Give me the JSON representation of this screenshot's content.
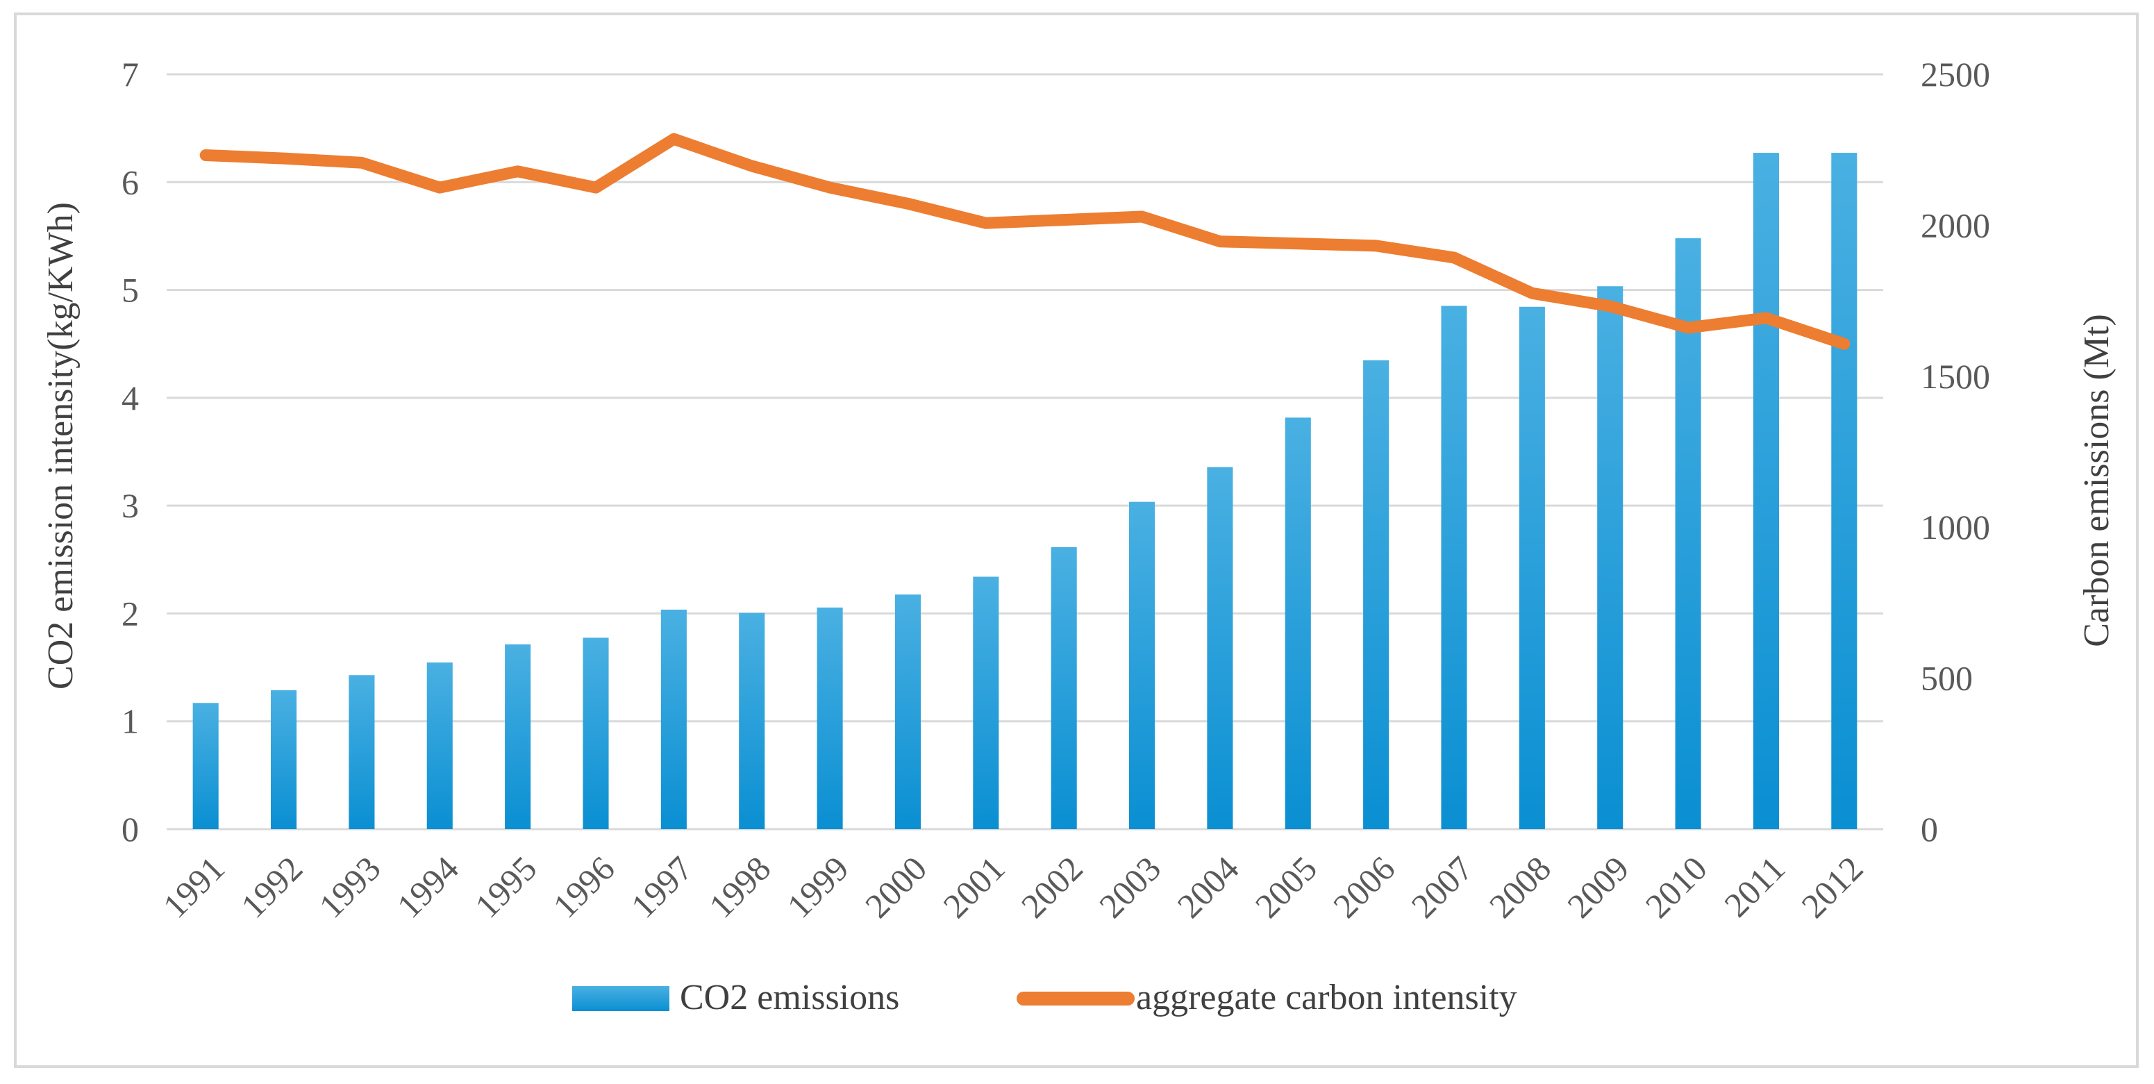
{
  "chart_data": {
    "type": "bar+line",
    "title": "",
    "categories": [
      "1991",
      "1992",
      "1993",
      "1994",
      "1995",
      "1996",
      "1997",
      "1998",
      "1999",
      "2000",
      "2001",
      "2002",
      "2003",
      "2004",
      "2005",
      "2006",
      "2007",
      "2008",
      "2009",
      "2010",
      "2011",
      "2012"
    ],
    "series": [
      {
        "name": "CO2 emissions",
        "type": "bar",
        "axis": "right",
        "color": "#1f9ad6",
        "values": [
          418,
          460,
          510,
          552,
          612,
          634,
          727,
          716,
          734,
          777,
          836,
          934,
          1084,
          1199,
          1363,
          1553,
          1733,
          1730,
          1798,
          1957,
          2240,
          2240
        ]
      },
      {
        "name": "aggregate carbon intensity",
        "type": "line",
        "axis": "left",
        "color": "#ed7d31",
        "values": [
          6.25,
          6.22,
          6.18,
          5.95,
          6.1,
          5.95,
          6.4,
          6.15,
          5.95,
          5.8,
          5.62,
          5.65,
          5.68,
          5.45,
          5.43,
          5.41,
          5.3,
          4.97,
          4.85,
          4.65,
          4.74,
          4.5
        ]
      }
    ],
    "ylabel": "CO2 emission intensity(kg/KWh)",
    "ylabel_right": "Carbon emissions (Mt)",
    "xlabel": "",
    "ylim": [
      0,
      7
    ],
    "ylim_right": [
      0,
      2500
    ],
    "yticks": [
      "0",
      "1",
      "2",
      "3",
      "4",
      "5",
      "6",
      "7"
    ],
    "yticks_right": [
      "0",
      "500",
      "1000",
      "1500",
      "2000",
      "2500"
    ],
    "grid": true,
    "legend_position": "bottom"
  }
}
